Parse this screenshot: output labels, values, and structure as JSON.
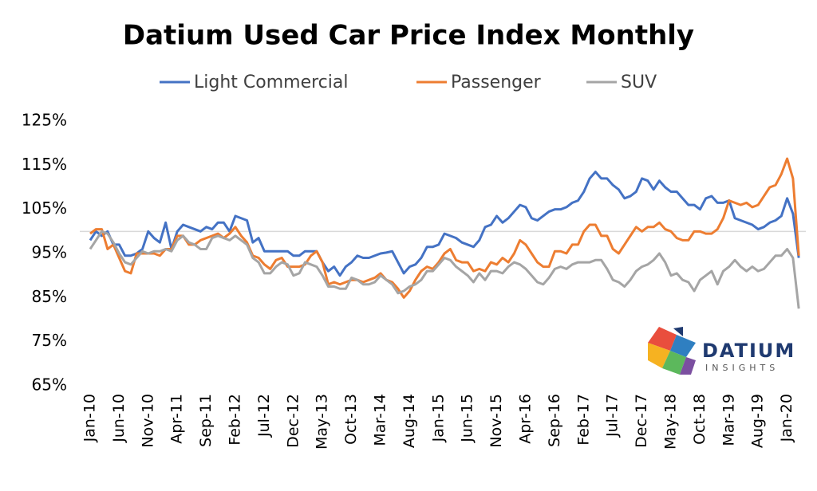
{
  "chart_data": {
    "type": "line",
    "title": "Datium Used Car Price Index Monthly",
    "categories": [
      "Jan-10",
      null,
      null,
      null,
      null,
      "Jun-10",
      null,
      null,
      null,
      null,
      "Nov-10",
      null,
      null,
      null,
      null,
      "Apr-11",
      null,
      null,
      null,
      null,
      "Sep-11",
      null,
      null,
      null,
      null,
      "Feb-12",
      null,
      null,
      null,
      null,
      "Jul-12",
      null,
      null,
      null,
      null,
      "Dec-12",
      null,
      null,
      null,
      null,
      "May-13",
      null,
      null,
      null,
      null,
      "Oct-13",
      null,
      null,
      null,
      null,
      "Mar-14",
      null,
      null,
      null,
      null,
      "Aug-14",
      null,
      null,
      null,
      null,
      "Jan-15",
      null,
      null,
      null,
      null,
      "Jun-15",
      null,
      null,
      null,
      null,
      "Nov-15",
      null,
      null,
      null,
      null,
      "Apr-16",
      null,
      null,
      null,
      null,
      "Sep-16",
      null,
      null,
      null,
      null,
      "Feb-17",
      null,
      null,
      null,
      null,
      "Jul-17",
      null,
      null,
      null,
      null,
      "Dec-17",
      null,
      null,
      null,
      null,
      "May-18",
      null,
      null,
      null,
      null,
      "Oct-18",
      null,
      null,
      null,
      null,
      "Mar-19",
      null,
      null,
      null,
      null,
      "Aug-19",
      null,
      null,
      null,
      null,
      "Jan-20",
      null,
      null
    ],
    "series": [
      {
        "name": "Light Commercial",
        "color": "#4472c4",
        "values": [
          98,
          100,
          99,
          100,
          97,
          97,
          94.5,
          94.5,
          95,
          96,
          100,
          98.5,
          97.5,
          102,
          96,
          100,
          101.5,
          101,
          100.5,
          100,
          101,
          100.5,
          102,
          102,
          100,
          103.5,
          103,
          102.5,
          97.5,
          98.5,
          95.5,
          95.5,
          95.5,
          95.5,
          95.5,
          94.5,
          94.5,
          95.5,
          95.5,
          95.5,
          93,
          91,
          92,
          90,
          92,
          93,
          94.5,
          94,
          94,
          94.5,
          95,
          95.2,
          95.5,
          93,
          90.5,
          92,
          92.5,
          94,
          96.5,
          96.5,
          97,
          99.5,
          99,
          98.5,
          97.5,
          97,
          96.5,
          98,
          101,
          101.5,
          103.5,
          102,
          103,
          104.5,
          106,
          105.5,
          103,
          102.5,
          103.5,
          104.5,
          105,
          105,
          105.5,
          106.5,
          107,
          109,
          112,
          113.5,
          112,
          112,
          110.5,
          109.5,
          107.5,
          108,
          109,
          112,
          111.5,
          109.5,
          111.5,
          110,
          109,
          109,
          107.5,
          106,
          106,
          105,
          107.5,
          108,
          106.5,
          106.5,
          107,
          103,
          102.5,
          102,
          101.5,
          100.5,
          101,
          102,
          102.5,
          103.5,
          107.5,
          104,
          94
        ]
      },
      {
        "name": "Passenger",
        "color": "#ed7d31",
        "values": [
          99.5,
          100.5,
          100.5,
          96,
          97,
          94,
          91,
          90.5,
          95,
          95,
          95,
          95,
          94.5,
          96,
          96,
          99,
          99,
          97,
          97,
          98,
          98.5,
          99,
          99.5,
          98.5,
          99.5,
          101,
          99,
          97.5,
          94.5,
          94,
          92.5,
          91.5,
          93.5,
          94,
          92,
          92,
          92,
          92.5,
          94.5,
          95.5,
          93,
          88,
          88.5,
          88,
          88.5,
          89,
          89,
          88.5,
          89,
          89.5,
          90.5,
          89,
          88.5,
          87,
          85,
          86.5,
          89,
          91,
          92,
          91.5,
          93,
          95,
          96,
          93.5,
          93,
          93,
          91,
          91.5,
          91,
          93,
          92.5,
          94,
          93,
          95,
          98,
          97,
          95,
          93,
          92,
          92,
          95.5,
          95.5,
          95,
          97,
          97,
          100,
          101.5,
          101.5,
          99,
          99,
          96,
          95,
          97,
          99,
          101,
          100,
          101,
          101,
          102,
          100.5,
          100,
          98.5,
          98,
          98,
          100,
          100,
          99.5,
          99.5,
          100.5,
          103,
          107,
          106.5,
          106,
          106.5,
          105.5,
          106,
          108,
          110,
          110.5,
          113,
          116.5,
          112,
          94.5
        ]
      },
      {
        "name": "SUV",
        "color": "#a5a5a5",
        "values": [
          96,
          98,
          100,
          99.5,
          97.5,
          95,
          93,
          92.5,
          94,
          95.5,
          95,
          95.5,
          95.5,
          96,
          95.5,
          98,
          99,
          97.5,
          97,
          96,
          96,
          98.5,
          99,
          98.5,
          98,
          99,
          98,
          97,
          94,
          93,
          90.5,
          90.5,
          92,
          93,
          92.5,
          90,
          90.5,
          93,
          92.5,
          92,
          90,
          87.5,
          87.5,
          87,
          87,
          89.5,
          89,
          88,
          88,
          88.5,
          90,
          89,
          88,
          86,
          86.5,
          87.5,
          88,
          89,
          91,
          91,
          92.5,
          94,
          93.5,
          92,
          91,
          90,
          88.5,
          90.5,
          89,
          91,
          91,
          90.5,
          92,
          93,
          92.5,
          91.5,
          90,
          88.5,
          88,
          89.5,
          91.5,
          92,
          91.5,
          92.5,
          93,
          93,
          93,
          93.5,
          93.5,
          91.5,
          89,
          88.5,
          87.5,
          89,
          91,
          92,
          92.5,
          93.5,
          95,
          93,
          90,
          90.5,
          89,
          88.5,
          86.5,
          89,
          90,
          91,
          88,
          91,
          92,
          93.5,
          92,
          91,
          92,
          91,
          91.5,
          93,
          94.5,
          94.5,
          96,
          94,
          82.5
        ]
      }
    ],
    "ylim": [
      65,
      125
    ],
    "yticks": [
      {
        "value": 65,
        "label": "65%"
      },
      {
        "value": 75,
        "label": "75%"
      },
      {
        "value": 85,
        "label": "85%"
      },
      {
        "value": 95,
        "label": "95%"
      },
      {
        "value": 105,
        "label": "105%"
      },
      {
        "value": 115,
        "label": "115%"
      },
      {
        "value": 125,
        "label": "125%"
      }
    ],
    "hline": 100,
    "hline_color": "#d9d9d9",
    "legend": "top",
    "logo": {
      "name": "DATIUM",
      "tagline": "INSIGHTS"
    }
  }
}
